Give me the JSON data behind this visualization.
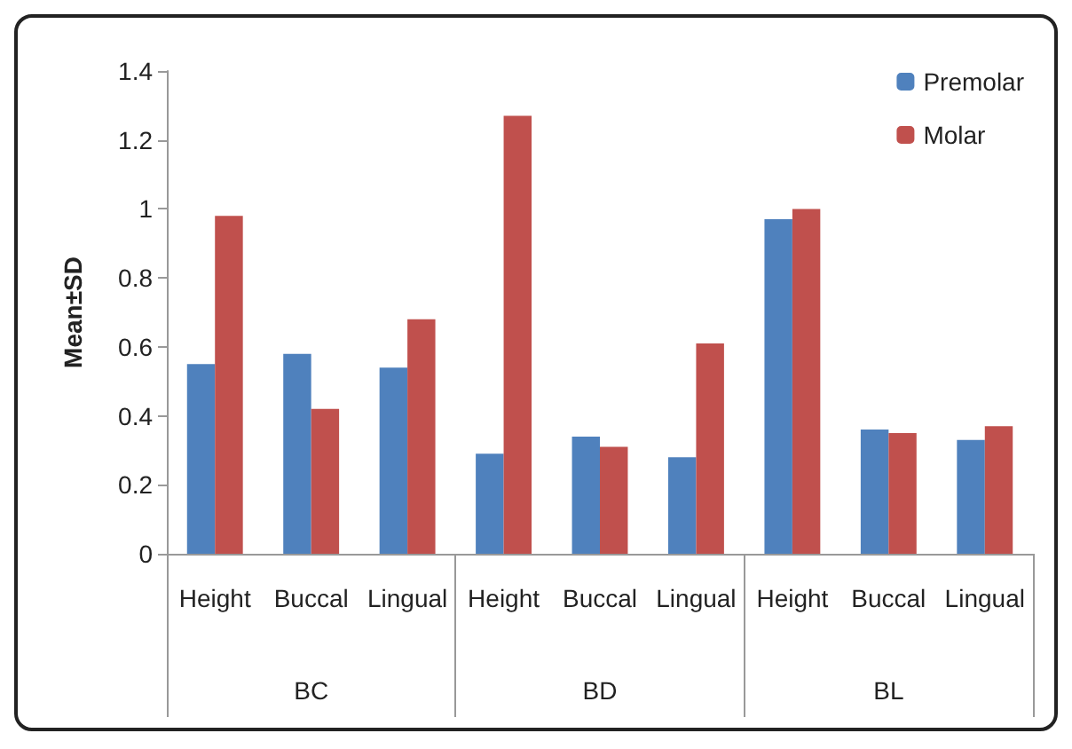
{
  "chart_data": {
    "type": "bar",
    "ylabel": "Mean±SD",
    "categories": [
      "Height",
      "Buccal",
      "Lingual",
      "Height",
      "Buccal",
      "Lingual",
      "Height",
      "Buccal",
      "Lingual"
    ],
    "annotations": [
      "BC",
      "BD",
      "BL"
    ],
    "series": [
      {
        "name": "Premolar",
        "color": "#4f81bd",
        "values": [
          0.55,
          0.58,
          0.54,
          0.29,
          0.34,
          0.28,
          0.97,
          0.36,
          0.33
        ]
      },
      {
        "name": "Molar",
        "color": "#c0504d",
        "values": [
          0.98,
          0.42,
          0.68,
          1.27,
          0.31,
          0.61,
          1.0,
          0.35,
          0.37
        ]
      }
    ],
    "ylim": [
      0,
      1.4
    ],
    "yticks": [
      0,
      0.2,
      0.4,
      0.6,
      0.8,
      1,
      1.2,
      1.4
    ],
    "grid": false,
    "legend": "top right"
  }
}
